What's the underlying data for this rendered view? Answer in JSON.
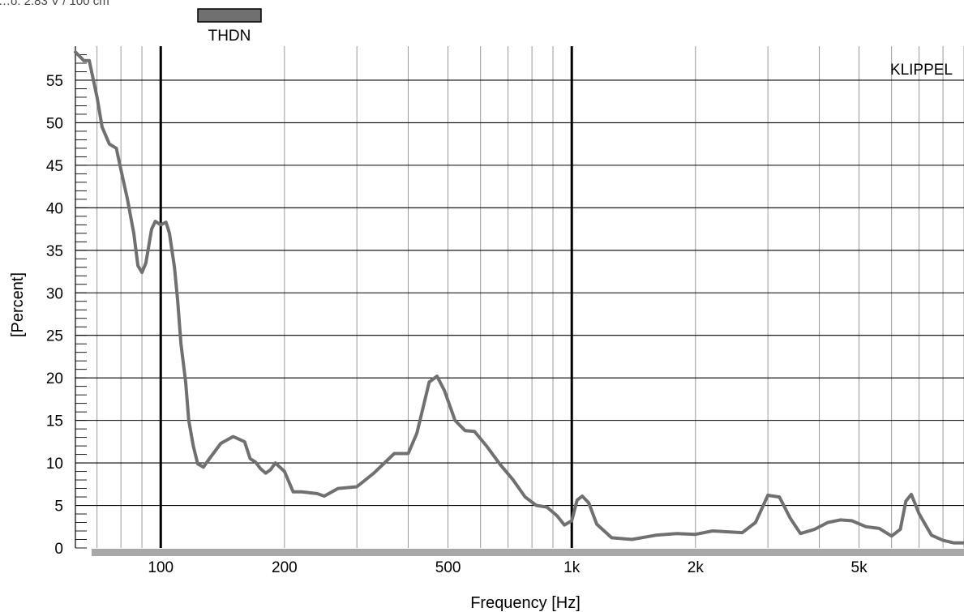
{
  "header_text": "…o: 2.83 V / 100 cm",
  "chart_data": {
    "type": "line",
    "xscale": "log",
    "xlim": [
      62,
      9000
    ],
    "ylim": [
      0,
      59
    ],
    "xlabel": "Frequency [Hz]",
    "ylabel": "[Percent]",
    "brand": "KLIPPEL",
    "legend": {
      "position": "top-left",
      "entries": [
        {
          "label": "THDN",
          "color": "#707070"
        }
      ]
    },
    "x_ticks": [
      {
        "value": 100,
        "label": "100"
      },
      {
        "value": 200,
        "label": "200"
      },
      {
        "value": 500,
        "label": "500"
      },
      {
        "value": 1000,
        "label": "1k"
      },
      {
        "value": 2000,
        "label": "2k"
      },
      {
        "value": 5000,
        "label": "5k"
      }
    ],
    "y_ticks": [
      0,
      5,
      10,
      15,
      20,
      25,
      30,
      35,
      40,
      45,
      50,
      55
    ],
    "emphasized_verticals": [
      100,
      1000
    ],
    "grid": true,
    "series": [
      {
        "name": "THDN",
        "color": "#707070",
        "x": [
          62,
          63.5,
          65,
          67,
          70,
          72,
          75,
          78,
          80,
          83,
          86,
          88,
          90,
          92,
          95,
          97,
          100,
          103,
          105,
          108,
          110,
          112,
          115,
          117,
          120,
          123,
          127,
          130,
          140,
          150,
          160,
          165,
          170,
          175,
          180,
          185,
          190,
          200,
          210,
          220,
          240,
          250,
          270,
          300,
          330,
          370,
          400,
          420,
          450,
          470,
          490,
          520,
          550,
          580,
          620,
          670,
          720,
          770,
          820,
          870,
          920,
          960,
          1000,
          1030,
          1060,
          1100,
          1150,
          1250,
          1400,
          1600,
          1800,
          2000,
          2200,
          2400,
          2600,
          2800,
          3000,
          3200,
          3400,
          3600,
          3900,
          4200,
          4500,
          4800,
          5200,
          5600,
          6000,
          6300,
          6500,
          6700,
          7000,
          7500,
          8000,
          8500,
          9000
        ],
        "y": [
          58.3,
          57.8,
          57.3,
          57.3,
          53,
          49.5,
          47.5,
          47,
          44.5,
          41,
          37,
          33.2,
          32.4,
          33.5,
          37.5,
          38.4,
          38,
          38.3,
          37,
          33,
          29,
          24,
          19.5,
          15,
          12,
          9.9,
          9.5,
          10.2,
          12.3,
          13.1,
          12.5,
          10.5,
          10.1,
          9.3,
          8.8,
          9.2,
          10,
          9,
          6.6,
          6.6,
          6.4,
          6.1,
          7,
          7.2,
          8.8,
          11.1,
          11.1,
          13.5,
          19.5,
          20.2,
          18.5,
          15,
          13.8,
          13.7,
          12,
          9.8,
          8,
          6,
          5,
          4.8,
          3.8,
          2.7,
          3.2,
          5.6,
          6.1,
          5.3,
          2.8,
          1.2,
          1.0,
          1.5,
          1.7,
          1.6,
          2.0,
          1.9,
          1.8,
          3.0,
          6.2,
          6.0,
          3.5,
          1.7,
          2.2,
          3.0,
          3.3,
          3.2,
          2.5,
          2.3,
          1.4,
          2.2,
          5.5,
          6.3,
          4.0,
          1.5,
          0.9,
          0.6,
          0.6
        ]
      }
    ]
  }
}
